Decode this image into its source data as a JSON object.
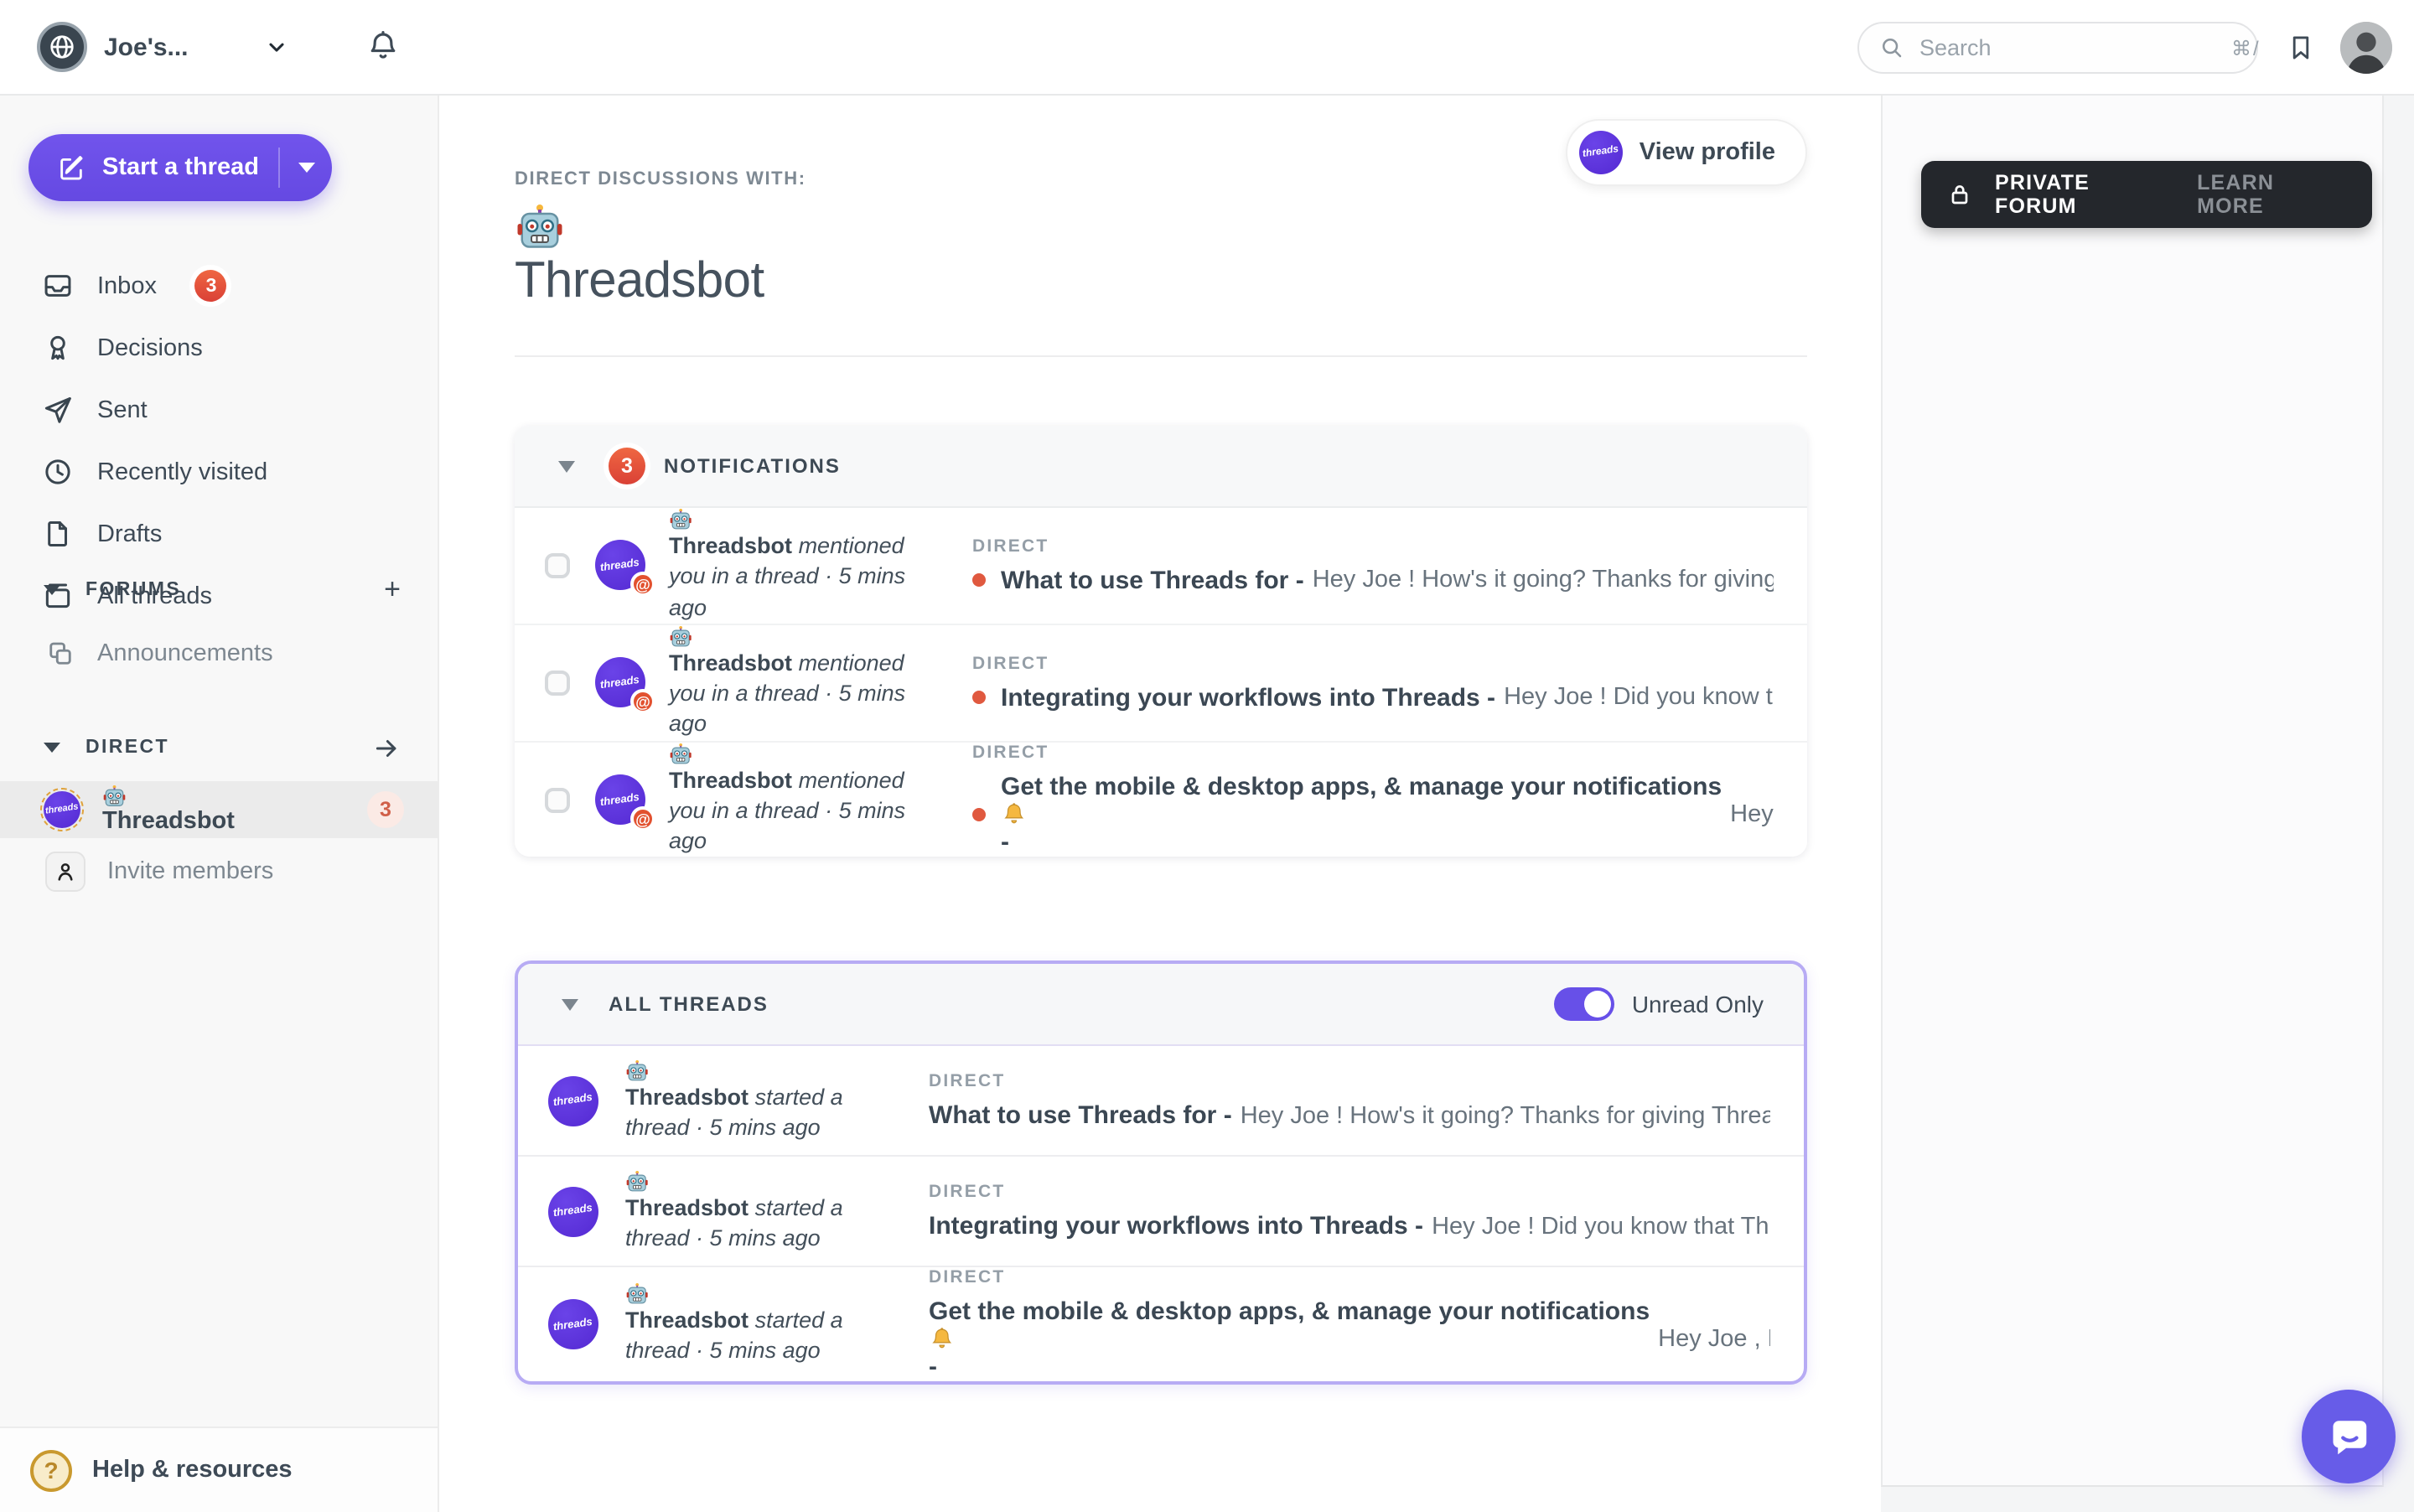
{
  "colors": {
    "accent_purple": "#6750e8",
    "avatar_purple": "#5a35dd",
    "badge_red": "#e2543e",
    "banner_dark": "#24272c",
    "gold_ring": "#dfa23b"
  },
  "topbar": {
    "workspace": {
      "name": "Joe's..."
    },
    "search": {
      "placeholder": "Search",
      "shortcut": "⌘/"
    }
  },
  "sidebar": {
    "start_thread": {
      "label": "Start a thread"
    },
    "nav": [
      {
        "label": "Inbox",
        "badge": "3"
      },
      {
        "label": "Decisions"
      },
      {
        "label": "Sent"
      },
      {
        "label": "Recently visited"
      },
      {
        "label": "Drafts"
      },
      {
        "label": "All threads"
      }
    ],
    "forums": {
      "header": "FORUMS",
      "add_glyph": "+",
      "items": [
        {
          "label": "Announcements"
        }
      ]
    },
    "direct": {
      "header": "DIRECT",
      "items": [
        {
          "label": "🤖 Threadsbot",
          "badge": "3"
        }
      ],
      "invite": "Invite members"
    },
    "help": {
      "label": "Help & resources",
      "glyph": "?"
    }
  },
  "main": {
    "kicker": "DIRECT DISCUSSIONS WITH:",
    "title": "🤖 Threadsbot",
    "view_profile": "View profile",
    "avatar_text": "threads",
    "mention_glyph": "@",
    "notifications": {
      "header": "NOTIFICATIONS",
      "badge": "3",
      "rows": [
        {
          "meta_bold": "🤖 Threadsbot",
          "meta_rest": "mentioned you in a thread · 5 mins ago",
          "tag": "DIRECT",
          "title": "What to use Threads for -",
          "preview": "Hey Joe ! How's it going? Thanks for giving Threads a tr…"
        },
        {
          "meta_bold": "🤖 Threadsbot",
          "meta_rest": "mentioned you in a thread · 5 mins ago",
          "tag": "DIRECT",
          "title": "Integrating your workflows into Threads -",
          "preview": "Hey Joe ! Did you know that Threads…"
        },
        {
          "meta_bold": "🤖 Threadsbot",
          "meta_rest": "mentioned you in a thread · 5 mins ago",
          "tag": "DIRECT",
          "title": "Get the mobile & desktop apps, & manage your notifications 🔔 -",
          "preview": "Hey Joe , F…"
        }
      ]
    },
    "all_threads": {
      "header": "ALL THREADS",
      "toggle_label": "Unread Only",
      "rows": [
        {
          "meta_bold": "🤖 Threadsbot",
          "meta_rest": "started a thread · 5 mins ago",
          "tag": "DIRECT",
          "title": "What to use Threads for -",
          "preview": "Hey Joe ! How's it going? Thanks for giving Threads a try! We…"
        },
        {
          "meta_bold": "🤖 Threadsbot",
          "meta_rest": "started a thread · 5 mins ago",
          "tag": "DIRECT",
          "title": "Integrating your workflows into Threads -",
          "preview": "Hey Joe ! Did you know that Threads…"
        },
        {
          "meta_bold": "🤖 Threadsbot",
          "meta_rest": "started a thread · 5 mins ago",
          "tag": "DIRECT",
          "title": "Get the mobile & desktop apps, & manage your notifications 🔔 -",
          "preview": "Hey Joe , For th…"
        }
      ]
    }
  },
  "right_panel": {
    "banner": {
      "label": "PRIVATE FORUM",
      "action": "LEARN MORE"
    }
  }
}
